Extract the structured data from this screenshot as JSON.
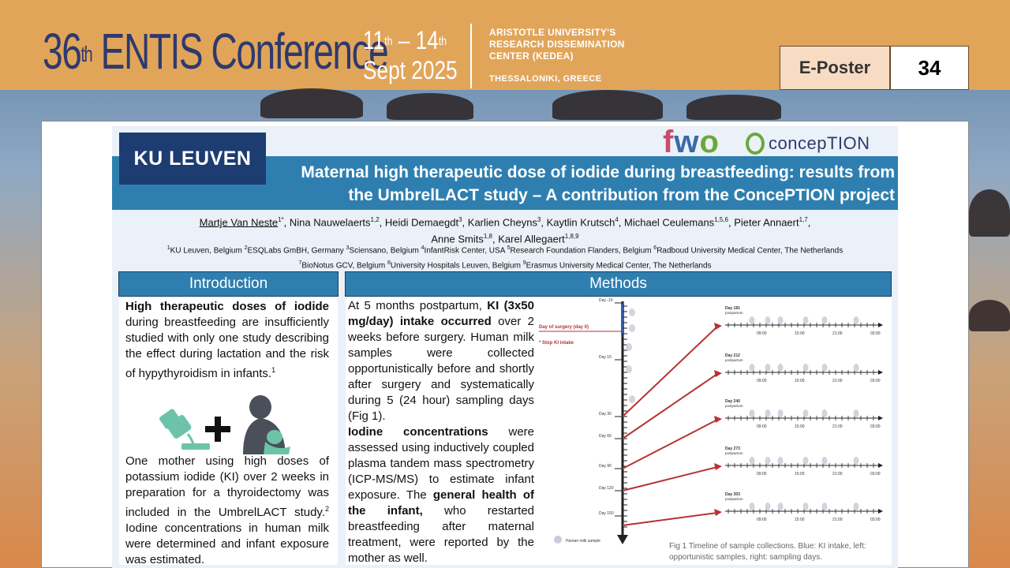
{
  "header": {
    "conference_number": "36",
    "conference_suffix": "th",
    "conference_name": "ENTIS Conference",
    "date_start": "11",
    "date_start_suffix": "th",
    "date_sep": "–",
    "date_end": "14",
    "date_end_suffix": "th",
    "date_month_year": "Sept 2025",
    "org_line1": "ARISTOTLE UNIVERSITY'S",
    "org_line2": "RESEARCH DISSEMINATION",
    "org_line3": "CENTER (KEDEA)",
    "city": "THESSALONIKI, GREECE",
    "eposter_label": "E-Poster",
    "eposter_number": "34"
  },
  "poster": {
    "ku_logo": "KU LEUVEN",
    "fwo_logo": "fwo",
    "conception_logo": "concepTION",
    "title_line1": "Maternal high therapeutic dose of iodide during breastfeeding: results from",
    "title_line2": "the UmbrelLACT study – A contribution from the ConcePTION project",
    "authors": [
      {
        "name": "Martje Van Neste",
        "sup": "1*"
      },
      {
        "name": "Nina Nauwelaerts",
        "sup": "1,2"
      },
      {
        "name": "Heidi Demaegdt",
        "sup": "3"
      },
      {
        "name": "Karlien Cheyns",
        "sup": "3"
      },
      {
        "name": "Kaytlin Krutsch",
        "sup": "4"
      },
      {
        "name": "Michael Ceulemans",
        "sup": "1,5,6"
      },
      {
        "name": "Pieter Annaert",
        "sup": "1,7"
      },
      {
        "name": "Anne Smits",
        "sup": "1,8"
      },
      {
        "name": "Karel Allegaert",
        "sup": "1,8,9"
      }
    ],
    "affiliations": [
      {
        "sup": "1",
        "text": "KU Leuven, Belgium"
      },
      {
        "sup": "2",
        "text": "ESQLabs GmBH, Germany"
      },
      {
        "sup": "3",
        "text": "Sciensano, Belgium"
      },
      {
        "sup": "4",
        "text": "InfantRisk Center, USA"
      },
      {
        "sup": "5",
        "text": "Research Foundation Flanders, Belgium"
      },
      {
        "sup": "6",
        "text": "Radboud University Medical Center, The Netherlands"
      },
      {
        "sup": "7",
        "text": "BioNotus GCV, Belgium"
      },
      {
        "sup": "8",
        "text": "University Hospitals Leuven, Belgium"
      },
      {
        "sup": "9",
        "text": "Erasmus University Medical Center, The Netherlands"
      }
    ],
    "intro": {
      "heading": "Introduction",
      "p1_bold": "High therapeutic doses of iodide",
      "p1_rest": " during breastfeeding are insufficiently studied with only one study describing the effect during lactation and the risk of hypythyroidism in infants.",
      "p1_sup": "1",
      "p2_a": "One mother using high doses of potassium iodide (KI) over 2 weeks in preparation for a thyroidectomy was included in the UmbrelLACT study.",
      "p2_sup": "2",
      "p2_b": " Iodine concentrations in human milk were determined and infant exposure was estimated."
    },
    "methods": {
      "heading": "Methods",
      "t1": "At 5 months postpartum, ",
      "t1_bold": "KI (3x50 mg/day) intake occurred",
      "t2": " over 2 weeks before surgery. Human milk samples were collected opportunistically before and shortly after surgery and systematically during 5 (24 hour) sampling days (Fig 1).",
      "t3_bold": "Iodine concentrations",
      "t4": " were assessed using inductively coupled plasma tandem mass spectrometry (ICP-MS/MS) to estimate infant exposure. The ",
      "t5_bold": "general health of the infant,",
      "t6": " who restarted breastfeeding after maternal treatment, were reported by the mother as well.",
      "caption": "Fig 1 Timeline of sample collections. Blue: KI intake, left: opportunistic samples, right: sampling days."
    },
    "figure": {
      "left_ticks": [
        "Day -10",
        "Day 10",
        "Day 30",
        "Day 60",
        "Day 90",
        "Day 120",
        "Day 150"
      ],
      "surgery_label": "Day of surgery (day 0)",
      "stop_label": "Stop KI intake",
      "legend_label": "Human milk sample",
      "panels": [
        {
          "day": "Day 181",
          "sub": "postpartum"
        },
        {
          "day": "Day 212",
          "sub": "postpartum"
        },
        {
          "day": "Day 240",
          "sub": "postpartum"
        },
        {
          "day": "Day 273",
          "sub": "postpartum"
        },
        {
          "day": "Day 303",
          "sub": "postpartum"
        }
      ],
      "times": [
        "09:00",
        "15:00",
        "21:00",
        "03:00"
      ],
      "colors": {
        "arrow": "#b83232",
        "ki": "#2e5fb0",
        "axis": "#222222"
      }
    }
  }
}
